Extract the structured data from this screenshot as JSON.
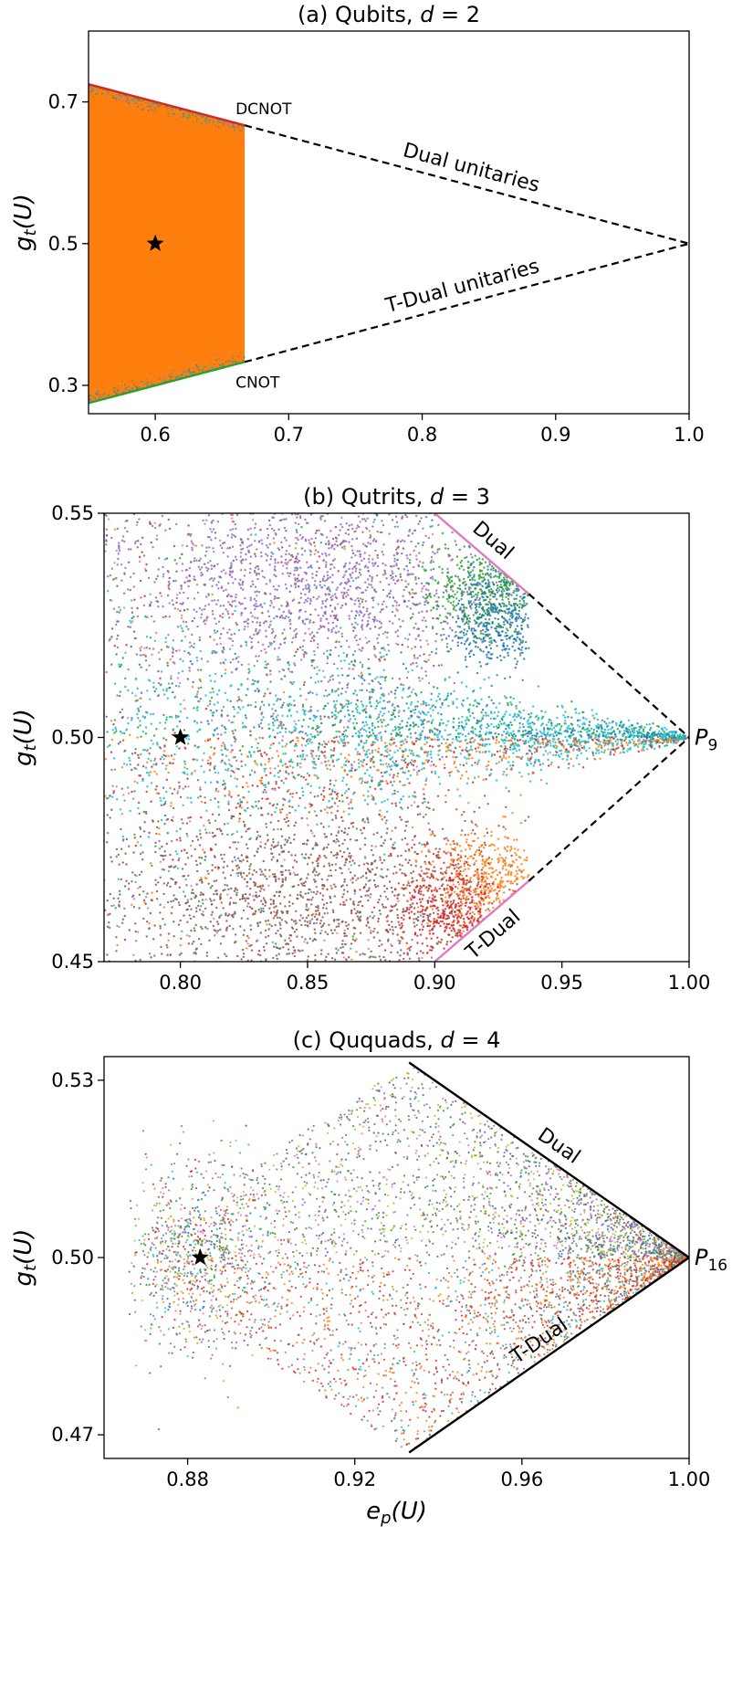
{
  "chart_data": [
    {
      "id": "a",
      "type": "scatter",
      "title": "(a) Qubits, d = 2",
      "ylabel": "g_t(U)",
      "xlabel": "",
      "xlim": [
        0.55,
        1.0
      ],
      "ylim": [
        0.26,
        0.8
      ],
      "xticks": [
        0.6,
        0.7,
        0.8,
        0.9,
        1.0
      ],
      "xtick_labels": [
        "0.6",
        "0.7",
        "0.8",
        "0.9",
        "1.0"
      ],
      "yticks": [
        0.3,
        0.5,
        0.7
      ],
      "ytick_labels": [
        "0.3",
        "0.5",
        "0.7"
      ],
      "region": {
        "x_min": 0.55,
        "x_max": 0.667,
        "upper": [
          [
            0.55,
            0.725
          ],
          [
            0.667,
            0.667
          ]
        ],
        "lower": [
          [
            0.55,
            0.275
          ],
          [
            0.667,
            0.333
          ]
        ],
        "color": "#ff7f0e"
      },
      "boundary_lines": [
        {
          "points": [
            [
              0.55,
              0.725
            ],
            [
              0.667,
              0.667
            ]
          ],
          "color": "#d62728",
          "style": "solid"
        },
        {
          "points": [
            [
              0.55,
              0.275
            ],
            [
              0.667,
              0.333
            ]
          ],
          "color": "#2ca02c",
          "style": "solid"
        },
        {
          "points": [
            [
              0.667,
              0.667
            ],
            [
              1.0,
              0.5
            ]
          ],
          "color": "#000000",
          "style": "dashed"
        },
        {
          "points": [
            [
              0.667,
              0.333
            ],
            [
              1.0,
              0.5
            ]
          ],
          "color": "#000000",
          "style": "dashed"
        }
      ],
      "star": [
        0.6,
        0.5
      ],
      "annotations": [
        {
          "text": "DCNOT",
          "x": 0.667,
          "y": 0.667,
          "kind": "point-label-above"
        },
        {
          "text": "CNOT",
          "x": 0.667,
          "y": 0.333,
          "kind": "point-label-below"
        },
        {
          "text": "Dual unitaries",
          "from": [
            0.667,
            0.667
          ],
          "to": [
            1.0,
            0.5
          ],
          "kind": "line-label-above"
        },
        {
          "text": "T-Dual unitaries",
          "from": [
            0.667,
            0.333
          ],
          "to": [
            1.0,
            0.5
          ],
          "kind": "line-label-above"
        }
      ]
    },
    {
      "id": "b",
      "type": "scatter",
      "title": "(b) Qutrits, d = 3",
      "ylabel": "g_t(U)",
      "xlabel": "",
      "xlim": [
        0.77,
        1.0
      ],
      "ylim": [
        0.45,
        0.55
      ],
      "xticks": [
        0.8,
        0.85,
        0.9,
        0.95,
        1.0
      ],
      "xtick_labels": [
        "0.80",
        "0.85",
        "0.90",
        "0.95",
        "1.00"
      ],
      "yticks": [
        0.45,
        0.5,
        0.55
      ],
      "ytick_labels": [
        "0.45",
        "0.50",
        "0.55"
      ],
      "series_colors": [
        "#9467bd",
        "#2ca02c",
        "#1f77b4",
        "#17becf",
        "#8c564b",
        "#d62728",
        "#ff7f0e",
        "#e377c2"
      ],
      "boundary_lines": [
        {
          "points": [
            [
              0.9,
              0.55
            ],
            [
              0.937,
              0.532
            ]
          ],
          "color": "#e377c2",
          "style": "solid"
        },
        {
          "points": [
            [
              0.9,
              0.45
            ],
            [
              0.937,
              0.468
            ]
          ],
          "color": "#e377c2",
          "style": "solid"
        },
        {
          "points": [
            [
              0.937,
              0.532
            ],
            [
              1.0,
              0.5
            ]
          ],
          "color": "#000000",
          "style": "dashed"
        },
        {
          "points": [
            [
              0.937,
              0.468
            ],
            [
              1.0,
              0.5
            ]
          ],
          "color": "#000000",
          "style": "dashed"
        }
      ],
      "star": [
        0.8,
        0.5
      ],
      "annotations": [
        {
          "text": "Dual",
          "from": [
            0.9,
            0.55
          ],
          "to": [
            0.937,
            0.532
          ],
          "kind": "line-label-above"
        },
        {
          "text": "T-Dual",
          "from": [
            0.9,
            0.45
          ],
          "to": [
            0.937,
            0.468
          ],
          "kind": "line-label-below"
        },
        {
          "text": "P",
          "sub": "9",
          "x": 1.0,
          "y": 0.5,
          "kind": "point-label-right"
        }
      ]
    },
    {
      "id": "c",
      "type": "scatter",
      "title": "(c) Ququads, d = 4",
      "ylabel": "g_t(U)",
      "xlabel": "e_p(U)",
      "xlim": [
        0.86,
        1.0
      ],
      "ylim": [
        0.466,
        0.534
      ],
      "xticks": [
        0.88,
        0.92,
        0.96,
        1.0
      ],
      "xtick_labels": [
        "0.88",
        "0.92",
        "0.96",
        "1.00"
      ],
      "yticks": [
        0.47,
        0.5,
        0.53
      ],
      "ytick_labels": [
        "0.47",
        "0.50",
        "0.53"
      ],
      "series_colors": [
        "#e377c2",
        "#1f77b4",
        "#2ca02c",
        "#bcbd22",
        "#17becf",
        "#d62728",
        "#ff7f0e",
        "#8c564b",
        "#7f7f7f",
        "#9467bd"
      ],
      "boundary_lines": [
        {
          "points": [
            [
              0.933,
              0.533
            ],
            [
              1.0,
              0.5
            ]
          ],
          "color": "#000000",
          "style": "solid"
        },
        {
          "points": [
            [
              0.933,
              0.467
            ],
            [
              1.0,
              0.5
            ]
          ],
          "color": "#000000",
          "style": "solid"
        }
      ],
      "star": [
        0.883,
        0.5
      ],
      "annotations": [
        {
          "text": "Dual",
          "from": [
            0.933,
            0.533
          ],
          "to": [
            1.0,
            0.5
          ],
          "kind": "line-label-above"
        },
        {
          "text": "T-Dual",
          "from": [
            0.933,
            0.467
          ],
          "to": [
            1.0,
            0.5
          ],
          "kind": "line-label-above"
        },
        {
          "text": "P",
          "sub": "16",
          "x": 1.0,
          "y": 0.5,
          "kind": "point-label-right"
        }
      ]
    }
  ]
}
